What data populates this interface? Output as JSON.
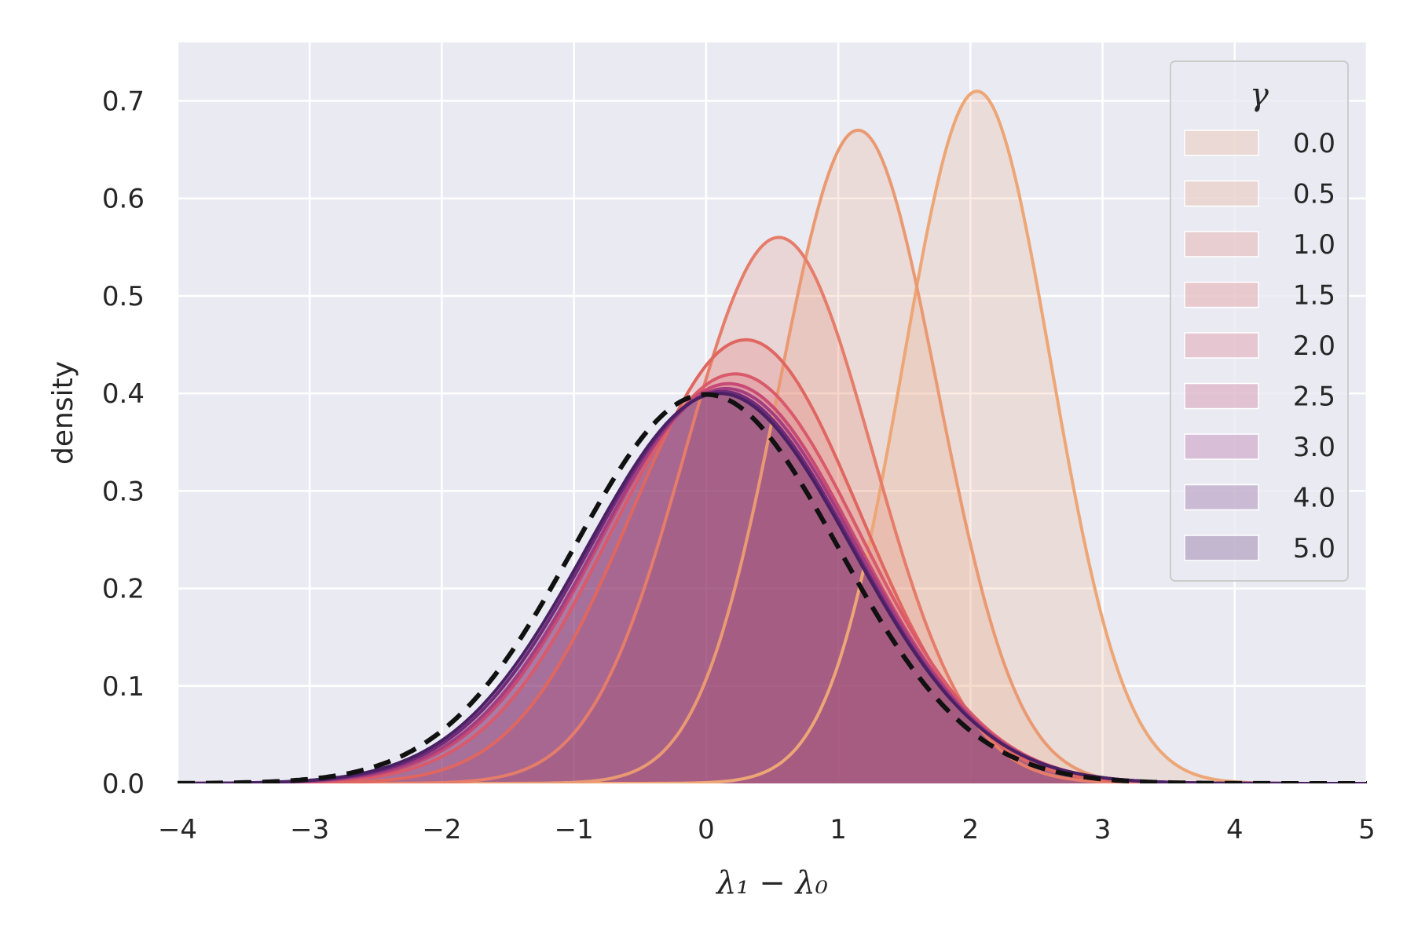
{
  "chart_data": {
    "type": "area",
    "title": "",
    "xlabel": "λ₁ − λ₀",
    "ylabel": "density",
    "xlim": [
      -4,
      5
    ],
    "ylim": [
      0,
      0.76
    ],
    "xticks": [
      -4,
      -3,
      -2,
      -1,
      0,
      1,
      2,
      3,
      4,
      5
    ],
    "xtick_labels": [
      "−4",
      "−3",
      "−2",
      "−1",
      "0",
      "1",
      "2",
      "3",
      "4",
      "5"
    ],
    "yticks": [
      0.0,
      0.1,
      0.2,
      0.3,
      0.4,
      0.5,
      0.6,
      0.7
    ],
    "ytick_labels": [
      "0.0",
      "0.1",
      "0.2",
      "0.3",
      "0.4",
      "0.5",
      "0.6",
      "0.7"
    ],
    "grid": true,
    "legend": {
      "title": "γ",
      "placement": "top-right"
    },
    "series": [
      {
        "name": "0.0",
        "color": "#eda676",
        "mean": 2.05,
        "sd": 0.56,
        "peak": 0.71
      },
      {
        "name": "0.5",
        "color": "#ea9a73",
        "mean": 1.15,
        "sd": 0.6,
        "peak": 0.67
      },
      {
        "name": "1.0",
        "color": "#e57d6a",
        "mean": 0.55,
        "sd": 0.71,
        "peak": 0.56
      },
      {
        "name": "1.5",
        "color": "#e06660",
        "mean": 0.3,
        "sd": 0.87,
        "peak": 0.455
      },
      {
        "name": "2.0",
        "color": "#d95a6a",
        "mean": 0.22,
        "sd": 0.95,
        "peak": 0.42
      },
      {
        "name": "2.5",
        "color": "#c74a74",
        "mean": 0.17,
        "sd": 0.97,
        "peak": 0.41
      },
      {
        "name": "3.0",
        "color": "#a33d80",
        "mean": 0.15,
        "sd": 0.98,
        "peak": 0.405
      },
      {
        "name": "4.0",
        "color": "#6f2a78",
        "mean": 0.12,
        "sd": 0.99,
        "peak": 0.402
      },
      {
        "name": "5.0",
        "color": "#4a2164",
        "mean": 0.1,
        "sd": 1.0,
        "peak": 0.4
      }
    ],
    "reference_curve": {
      "type": "normal",
      "mean": 0.0,
      "sd": 1.0,
      "style": "dashed",
      "color": "#111111"
    }
  }
}
